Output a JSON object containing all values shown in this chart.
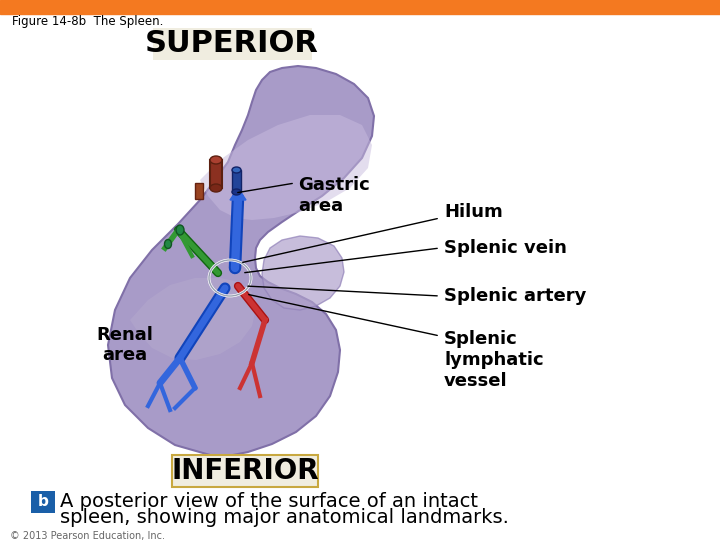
{
  "title": "Figure 14-8b  The Spleen.",
  "header_color": "#F47920",
  "bg_color": "#FFFFFF",
  "superior_label": "SUPERIOR",
  "inferior_label": "INFERIOR",
  "spleen_fill": "#A89BC8",
  "spleen_fill2": "#B8AEDD",
  "spleen_edge": "#8070A8",
  "labels": {
    "gastric_area": "Gastric\narea",
    "renal_area": "Renal\narea",
    "hilum": "Hilum",
    "splenic_vein": "Splenic vein",
    "splenic_artery": "Splenic artery",
    "splenic_lymphatic": "Splenic\nlymphatic\nvessel"
  },
  "footer_text_1": "A posterior view of the surface of an intact",
  "footer_text_2": "spleen, showing major anatomical landmarks.",
  "copyright": "© 2013 Pearson Education, Inc.",
  "b_box_color": "#1a5fa8",
  "b_label": "b",
  "superior_box_fill": "#F0EDE0",
  "inferior_box_fill": "#F0EDE0",
  "label_fontsize": 13,
  "superior_fontsize": 22,
  "inferior_fontsize": 20,
  "footer_fontsize": 14
}
